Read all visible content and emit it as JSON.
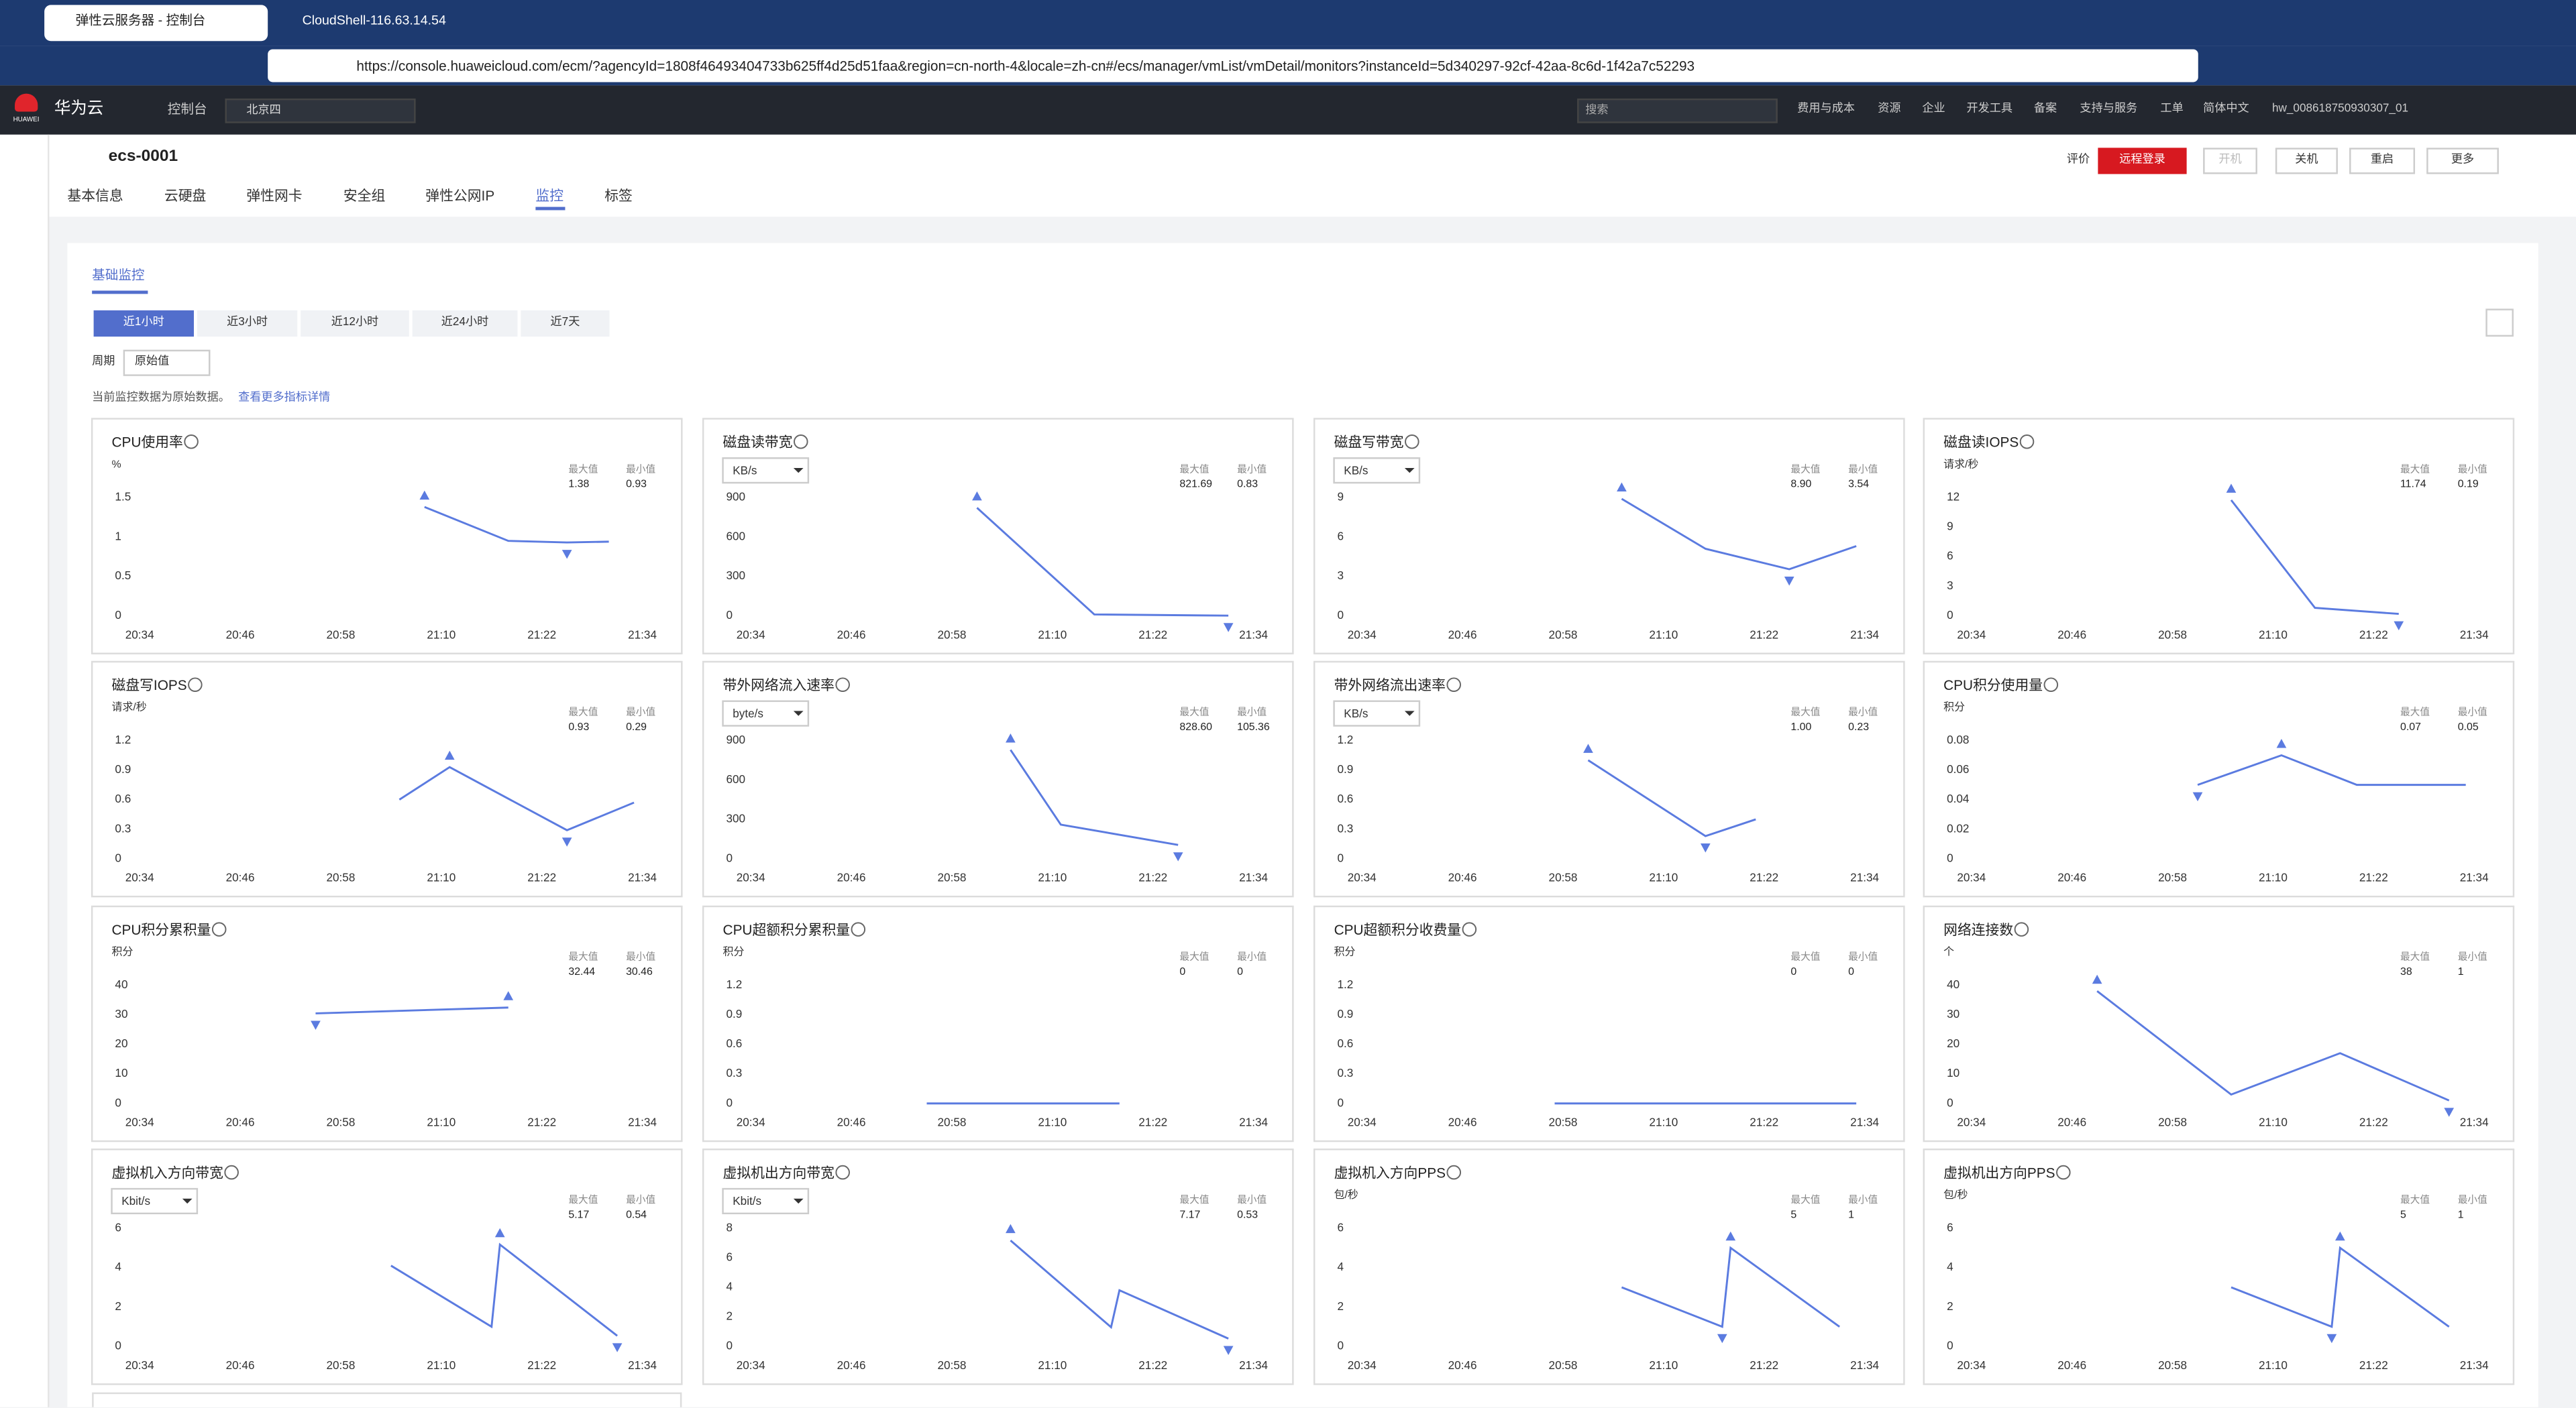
{
  "browser": {
    "tabs": [
      "弹性云服务器 - 控制台",
      "CloudShell-116.63.14.54"
    ],
    "url": "https://console.huaweicloud.com/ecm/?agencyId=1808f46493404733b625ff4d25d51faa&region=cn-north-4&locale=zh-cn#/ecs/manager/vmList/vmDetail/monitors?instanceId=5d340297-92cf-42aa-8c6d-1f42a7c52293"
  },
  "header": {
    "logo": "HUAWEI",
    "brand": "华为云",
    "console": "控制台",
    "region": "北京四",
    "search": "搜索",
    "nav": [
      "费用与成本",
      "资源",
      "企业",
      "开发工具",
      "备案",
      "支持与服务",
      "工单",
      "简体中文"
    ],
    "user": "hw_008618750930307_01"
  },
  "instance": {
    "name": "ecs-0001",
    "tabs": [
      "基本信息",
      "云硬盘",
      "弹性网卡",
      "安全组",
      "弹性公网IP",
      "监控",
      "标签"
    ],
    "actions": [
      "评价",
      "远程登录",
      "开机",
      "关机",
      "重启",
      "更多"
    ]
  },
  "monitor": {
    "section": "基础监控",
    "ranges": [
      "近1小时",
      "近3小时",
      "近12小时",
      "近24小时",
      "近7天"
    ],
    "period_label": "周期",
    "period": "原始值",
    "note": "当前监控数据为原始数据。",
    "link": "查看更多指标详情",
    "max_label": "最大值",
    "min_label": "最小值",
    "xlim": [
      "20:34",
      "21:34"
    ],
    "xticks": [
      "20:34",
      "20:46",
      "20:58",
      "21:10",
      "21:22",
      "21:34"
    ]
  },
  "charts": [
    {
      "type": "line",
      "title": "CPU使用率",
      "unit": "%",
      "unit_select": false,
      "max": 1.38,
      "min": 0.93,
      "ylim": [
        0,
        1.5
      ],
      "yticks": [
        0,
        0.5,
        1,
        1.5
      ],
      "x": [
        "21:08",
        "21:18",
        "21:25",
        "21:30"
      ],
      "values": [
        1.38,
        0.95,
        0.93,
        0.94
      ],
      "color": "#5b7be0"
    },
    {
      "type": "line",
      "title": "磁盘读带宽",
      "unit": "KB/s",
      "unit_select": true,
      "max": 821.69,
      "min": 0.83,
      "ylim": [
        0,
        900
      ],
      "yticks": [
        0,
        300,
        600,
        900
      ],
      "x": [
        "21:01",
        "21:15",
        "21:31"
      ],
      "values": [
        821.69,
        10,
        0.83
      ],
      "color": "#5b7be0"
    },
    {
      "type": "line",
      "title": "磁盘写带宽",
      "unit": "KB/s",
      "unit_select": true,
      "max": {
        "value": 8.9,
        "label": "8.90"
      },
      "min": 3.54,
      "ylim": [
        0,
        9
      ],
      "yticks": [
        0,
        3,
        6,
        9
      ],
      "x": [
        "21:05",
        "21:15",
        "21:25",
        "21:33"
      ],
      "values": [
        8.9,
        5.1,
        3.54,
        5.3
      ],
      "color": "#5b7be0"
    },
    {
      "type": "line",
      "title": "磁盘读IOPS",
      "unit": "请求/秒",
      "unit_select": false,
      "max": 11.74,
      "min": 0.19,
      "ylim": [
        0,
        12
      ],
      "yticks": [
        0,
        3,
        6,
        9,
        12
      ],
      "x": [
        "21:05",
        "21:15",
        "21:25"
      ],
      "values": [
        11.74,
        0.8,
        0.19
      ],
      "color": "#5b7be0"
    },
    {
      "type": "line",
      "title": "磁盘写IOPS",
      "unit": "请求/秒",
      "unit_select": false,
      "max": 0.93,
      "min": 0.29,
      "ylim": [
        0,
        1.2
      ],
      "yticks": [
        0,
        0.3,
        0.6,
        0.9,
        1.2
      ],
      "x": [
        "21:05",
        "21:11",
        "21:25",
        "21:33"
      ],
      "values": [
        0.6,
        0.93,
        0.29,
        0.57
      ],
      "color": "#5b7be0"
    },
    {
      "type": "line",
      "title": "带外网络流入速率",
      "unit": "byte/s",
      "unit_select": true,
      "max": {
        "value": 828.6,
        "label": "828.60"
      },
      "min": 105.36,
      "ylim": [
        0,
        900
      ],
      "yticks": [
        0,
        300,
        600,
        900
      ],
      "x": [
        "21:05",
        "21:11",
        "21:25"
      ],
      "values": [
        828.6,
        260,
        105.36
      ],
      "color": "#5b7be0"
    },
    {
      "type": "line",
      "title": "带外网络流出速率",
      "unit": "KB/s",
      "unit_select": true,
      "max": {
        "value": 1,
        "label": "1.00"
      },
      "min": 0.23,
      "ylim": [
        0,
        1.2
      ],
      "yticks": [
        0,
        0.3,
        0.6,
        0.9,
        1.2
      ],
      "x": [
        "21:01",
        "21:15",
        "21:21"
      ],
      "values": [
        1,
        0.23,
        0.4
      ],
      "color": "#5b7be0"
    },
    {
      "type": "line",
      "title": "CPU积分使用量",
      "unit": "积分",
      "unit_select": false,
      "max": 0.07,
      "min": 0.05,
      "ylim": [
        0,
        0.08
      ],
      "yticks": [
        0,
        0.02,
        0.04,
        0.06,
        0.08
      ],
      "x": [
        "21:01",
        "21:11",
        "21:20",
        "21:33"
      ],
      "values": [
        0.05,
        0.07,
        0.05,
        0.05
      ],
      "color": "#5b7be0"
    },
    {
      "type": "line",
      "title": "CPU积分累积量",
      "unit": "积分",
      "unit_select": false,
      "max": 32.44,
      "min": 30.46,
      "ylim": [
        0,
        40
      ],
      "yticks": [
        0,
        10,
        20,
        30,
        40
      ],
      "x": [
        "20:55",
        "21:18"
      ],
      "values": [
        30.46,
        32.44
      ],
      "color": "#5b7be0"
    },
    {
      "type": "line",
      "title": "CPU超额积分累积量",
      "unit": "积分",
      "unit_select": false,
      "max": 0,
      "min": 0,
      "ylim": [
        0,
        1.2
      ],
      "yticks": [
        0,
        0.3,
        0.6,
        0.9,
        1.2
      ],
      "x": [
        "20:55",
        "21:18"
      ],
      "values": [
        0,
        0
      ],
      "color": "#5b7be0"
    },
    {
      "type": "line",
      "title": "CPU超额积分收费量",
      "unit": "积分",
      "unit_select": false,
      "max": 0,
      "min": 0,
      "ylim": [
        0,
        1.2
      ],
      "yticks": [
        0,
        0.3,
        0.6,
        0.9,
        1.2
      ],
      "x": [
        "20:57",
        "21:33"
      ],
      "values": [
        0,
        0
      ],
      "color": "#5b7be0"
    },
    {
      "type": "line",
      "title": "网络连接数",
      "unit": "个",
      "unit_select": false,
      "max": 38,
      "min": 1,
      "ylim": [
        0,
        40
      ],
      "yticks": [
        0,
        10,
        20,
        30,
        40
      ],
      "x": [
        "20:49",
        "21:05",
        "21:18",
        "21:31"
      ],
      "values": [
        38,
        3,
        17,
        1
      ],
      "color": "#5b7be0"
    },
    {
      "type": "line",
      "title": "虚拟机入方向带宽",
      "unit": "Kbit/s",
      "unit_select": true,
      "max": 5.17,
      "min": 0.54,
      "ylim": [
        0,
        6
      ],
      "yticks": [
        0,
        2,
        4,
        6
      ],
      "x": [
        "21:04",
        "21:16",
        "21:17",
        "21:31"
      ],
      "values": [
        4.1,
        1,
        5.17,
        0.54
      ],
      "color": "#5b7be0"
    },
    {
      "type": "line",
      "title": "虚拟机出方向带宽",
      "unit": "Kbit/s",
      "unit_select": true,
      "max": 7.17,
      "min": 0.53,
      "ylim": [
        0,
        8
      ],
      "yticks": [
        0,
        2,
        4,
        6,
        8
      ],
      "x": [
        "21:05",
        "21:17",
        "21:18",
        "21:31"
      ],
      "values": [
        7.17,
        1.3,
        3.8,
        0.53
      ],
      "color": "#5b7be0"
    },
    {
      "type": "line",
      "title": "虚拟机入方向PPS",
      "unit": "包/秒",
      "unit_select": false,
      "max": 5,
      "min": 1,
      "ylim": [
        0,
        6
      ],
      "yticks": [
        0,
        2,
        4,
        6
      ],
      "x": [
        "21:05",
        "21:17",
        "21:18",
        "21:31"
      ],
      "values": [
        3,
        1,
        5,
        1
      ],
      "color": "#5b7be0"
    },
    {
      "type": "line",
      "title": "虚拟机出方向PPS",
      "unit": "包/秒",
      "unit_select": false,
      "max": 5,
      "min": 1,
      "ylim": [
        0,
        6
      ],
      "yticks": [
        0,
        2,
        4,
        6
      ],
      "x": [
        "21:05",
        "21:17",
        "21:18",
        "21:31"
      ],
      "values": [
        3,
        1,
        5,
        1
      ],
      "color": "#5b7be0"
    }
  ]
}
